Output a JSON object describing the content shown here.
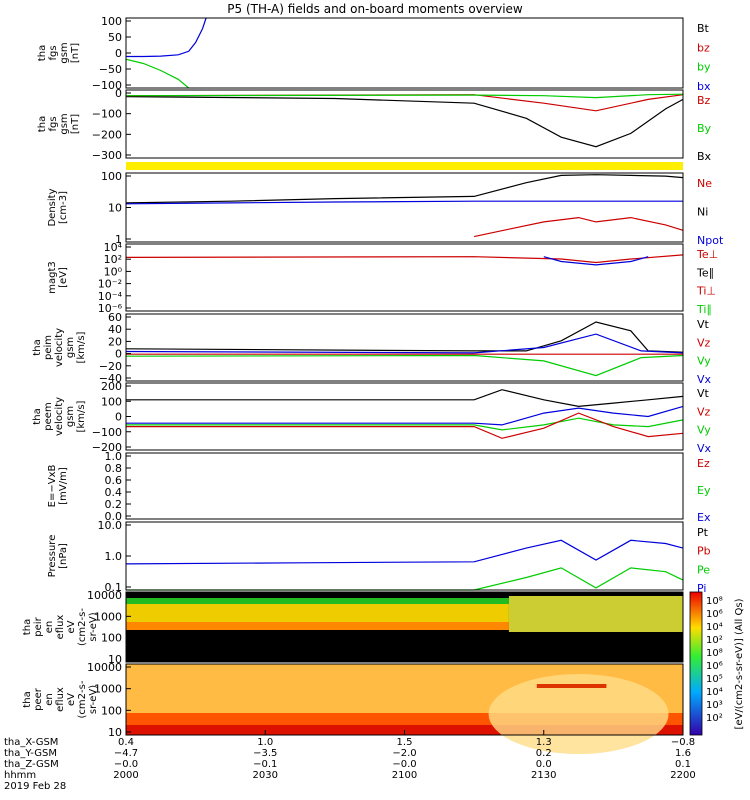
{
  "title": "P5 (TH-A) fields and on-board moments overview",
  "chart_data": [
    {
      "type": "line",
      "panel": "fgs_gsm",
      "ylabel": [
        "tha",
        "fgs",
        "gsm",
        "[nT]"
      ],
      "ylim": [
        -100,
        100
      ],
      "yticks": [
        "100",
        "50",
        "0",
        "−50",
        "−100"
      ],
      "legend": [
        {
          "name": "Bt",
          "color": "#000000"
        },
        {
          "name": "bz",
          "color": "#cc0000"
        },
        {
          "name": "by",
          "color": "#00cc00"
        },
        {
          "name": "bx",
          "color": "#0000dd"
        }
      ],
      "series": [
        {
          "name": "bx",
          "color": "#0000dd",
          "x": [
            2000,
            2005,
            2010,
            2015,
            2018,
            2020,
            2022,
            2023
          ],
          "y": [
            -10,
            -10,
            -9,
            -5,
            5,
            30,
            70,
            100
          ]
        },
        {
          "name": "by",
          "color": "#00cc00",
          "x": [
            2000,
            2005,
            2010,
            2015,
            2018
          ],
          "y": [
            -18,
            -30,
            -50,
            -75,
            -100
          ]
        }
      ]
    },
    {
      "type": "line",
      "panel": "fgs_gse",
      "ylabel": [
        "tha",
        "fgs",
        "gsm",
        "[nT]"
      ],
      "ylim": [
        -330,
        30
      ],
      "yticks": [
        "0",
        "−100",
        "−200",
        "−300"
      ],
      "legend": [
        {
          "name": "Bz",
          "color": "#cc0000"
        },
        {
          "name": "By",
          "color": "#00cc00"
        },
        {
          "name": "Bx",
          "color": "#000000"
        }
      ],
      "series": [
        {
          "name": "Bx",
          "color": "#000000",
          "x": [
            2000,
            2060,
            2100,
            2115,
            2125,
            2135,
            2145,
            2155,
            2160
          ],
          "y": [
            -5,
            -15,
            -40,
            -120,
            -220,
            -270,
            -200,
            -70,
            -20
          ]
        },
        {
          "name": "Bz",
          "color": "#cc0000",
          "x": [
            2000,
            2100,
            2120,
            2135,
            2150,
            2160
          ],
          "y": [
            0,
            5,
            -40,
            -80,
            -20,
            5
          ]
        },
        {
          "name": "By",
          "color": "#00cc00",
          "x": [
            2000,
            2100,
            2120,
            2135,
            2150,
            2160
          ],
          "y": [
            0,
            3,
            0,
            -10,
            5,
            8
          ]
        }
      ]
    },
    {
      "type": "line",
      "panel": "density",
      "ylabel": [
        "Density",
        "[cm-3]"
      ],
      "scale": "log",
      "ylim": [
        0.3,
        200
      ],
      "yticks": [
        "100",
        "10",
        "1"
      ],
      "legend": [
        {
          "name": "Ne",
          "color": "#cc0000"
        },
        {
          "name": "Ni",
          "color": "#000000"
        },
        {
          "name": "Npot",
          "color": "#0000dd"
        }
      ],
      "series": [
        {
          "name": "Ni",
          "color": "#000000",
          "x": [
            2000,
            2030,
            2060,
            2100,
            2115,
            2125,
            2135,
            2145,
            2155,
            2160
          ],
          "y": [
            12,
            14,
            18,
            22,
            80,
            160,
            170,
            160,
            150,
            130
          ]
        },
        {
          "name": "Npot",
          "color": "#0000dd",
          "x": [
            2000,
            2030,
            2060,
            2100,
            2110,
            2130,
            2150,
            2160
          ],
          "y": [
            11,
            12,
            13,
            14,
            14,
            14,
            14,
            14
          ]
        },
        {
          "name": "Ne",
          "color": "#cc0000",
          "x": [
            2100,
            2110,
            2120,
            2130,
            2135,
            2145,
            2155,
            2160
          ],
          "y": [
            0.5,
            1,
            2,
            3,
            2,
            3,
            1.5,
            0.9
          ]
        }
      ]
    },
    {
      "type": "line",
      "panel": "temperature",
      "ylabel": [
        "magt3",
        "[eV]"
      ],
      "scale": "log",
      "ylim": [
        1e-07,
        30000
      ],
      "yticks": [
        "10⁴",
        "10²",
        "10⁰",
        "10⁻²",
        "10⁻⁴",
        "10⁻⁶"
      ],
      "legend": [
        {
          "name": "Te⊥",
          "color": "#cc0000"
        },
        {
          "name": "Te∥",
          "color": "#000000"
        },
        {
          "name": "Ti⊥",
          "color": "#cc0000"
        },
        {
          "name": "Ti∥",
          "color": "#00cc00"
        }
      ],
      "series": [
        {
          "name": "Te⊥",
          "color": "#cc0000",
          "x": [
            2000,
            2100,
            2125,
            2135,
            2145,
            2160
          ],
          "y": [
            150,
            200,
            80,
            20,
            80,
            400
          ]
        },
        {
          "name": "Ti⊥",
          "color": "#0000dd",
          "x": [
            2120,
            2125,
            2135,
            2145,
            2150
          ],
          "y": [
            200,
            30,
            8,
            30,
            200
          ]
        }
      ]
    },
    {
      "type": "line",
      "panel": "velocity_gsm_peim",
      "ylabel": [
        "tha",
        "peim",
        "velocity",
        "gsm",
        "[km/s]"
      ],
      "ylim": [
        -40,
        60
      ],
      "yticks": [
        "60",
        "40",
        "20",
        "0",
        "−20",
        "−40"
      ],
      "legend": [
        {
          "name": "Vt",
          "color": "#000000"
        },
        {
          "name": "Vz",
          "color": "#cc0000"
        },
        {
          "name": "Vy",
          "color": "#00cc00"
        },
        {
          "name": "Vx",
          "color": "#0000dd"
        }
      ],
      "series": [
        {
          "name": "Vt",
          "color": "#000000",
          "x": [
            2000,
            2100,
            2115,
            2125,
            2135,
            2145,
            2150,
            2160
          ],
          "y": [
            8,
            5,
            5,
            20,
            48,
            35,
            5,
            3
          ]
        },
        {
          "name": "Vx",
          "color": "#0000dd",
          "x": [
            2000,
            2100,
            2120,
            2135,
            2148,
            2160
          ],
          "y": [
            4,
            2,
            10,
            30,
            5,
            2
          ]
        },
        {
          "name": "Vy",
          "color": "#00cc00",
          "x": [
            2000,
            2100,
            2120,
            2135,
            2148,
            2160
          ],
          "y": [
            -3,
            -2,
            -10,
            -32,
            -5,
            -2
          ]
        },
        {
          "name": "Vz",
          "color": "#cc0000",
          "x": [
            2000,
            2160
          ],
          "y": [
            0,
            0
          ]
        }
      ]
    },
    {
      "type": "line",
      "panel": "velocity_gsm_peem",
      "ylabel": [
        "tha",
        "peem",
        "velocity",
        "gsm",
        "[km/s]"
      ],
      "ylim": [
        -200,
        200
      ],
      "yticks": [
        "200",
        "100",
        "0",
        "−100",
        "−200"
      ],
      "legend": [
        {
          "name": "Vt",
          "color": "#000000"
        },
        {
          "name": "Vz",
          "color": "#cc0000"
        },
        {
          "name": "Vy",
          "color": "#00cc00"
        },
        {
          "name": "Vx",
          "color": "#0000dd"
        }
      ],
      "series": [
        {
          "name": "Vt",
          "color": "#000000",
          "x": [
            2000,
            2100,
            2108,
            2120,
            2130,
            2140,
            2150,
            2160
          ],
          "y": [
            100,
            100,
            160,
            100,
            60,
            80,
            100,
            120
          ]
        },
        {
          "name": "Vx",
          "color": "#0000dd",
          "x": [
            2000,
            2100,
            2108,
            2120,
            2130,
            2140,
            2150,
            2160
          ],
          "y": [
            -40,
            -40,
            -50,
            20,
            50,
            20,
            0,
            60
          ]
        },
        {
          "name": "Vy",
          "color": "#00cc00",
          "x": [
            2000,
            2100,
            2108,
            2120,
            2130,
            2140,
            2150,
            2160
          ],
          "y": [
            -50,
            -50,
            -80,
            -50,
            -10,
            -50,
            -60,
            -20
          ]
        },
        {
          "name": "Vz",
          "color": "#cc0000",
          "x": [
            2000,
            2100,
            2108,
            2120,
            2130,
            2140,
            2150,
            2160
          ],
          "y": [
            -60,
            -60,
            -130,
            -70,
            20,
            -60,
            -120,
            -100
          ]
        }
      ]
    },
    {
      "type": "line",
      "panel": "e_field",
      "ylabel": [
        "E=−VxB",
        "[mV/m]"
      ],
      "ylim": [
        0,
        1
      ],
      "yticks": [
        "1.0",
        "0.8",
        "0.6",
        "0.4",
        "0.2",
        "0.0"
      ],
      "legend": [
        {
          "name": "Ez",
          "color": "#cc0000"
        },
        {
          "name": "Ey",
          "color": "#00cc00"
        },
        {
          "name": "Ex",
          "color": "#0000dd"
        }
      ],
      "series": []
    },
    {
      "type": "line",
      "panel": "pressure",
      "ylabel": [
        "Pressure",
        "[nPa]"
      ],
      "scale": "log",
      "ylim": [
        0.05,
        20
      ],
      "yticks": [
        "10.0",
        "1.0",
        "0.1"
      ],
      "legend": [
        {
          "name": "Pt",
          "color": "#000000"
        },
        {
          "name": "Pb",
          "color": "#cc0000"
        },
        {
          "name": "Pe",
          "color": "#00cc00"
        },
        {
          "name": "Pi",
          "color": "#0000dd"
        }
      ],
      "series": [
        {
          "name": "Pi",
          "color": "#0000dd",
          "x": [
            2000,
            2050,
            2100,
            2115,
            2125,
            2135,
            2145,
            2155,
            2160
          ],
          "y": [
            0.5,
            0.55,
            0.6,
            2,
            4,
            0.7,
            4,
            3,
            2
          ]
        },
        {
          "name": "Pe",
          "color": "#00cc00",
          "x": [
            2000,
            2100,
            2115,
            2125,
            2135,
            2145,
            2155,
            2160
          ],
          "y": [
            0.05,
            0.05,
            0.15,
            0.35,
            0.06,
            0.35,
            0.25,
            0.12
          ]
        }
      ]
    },
    {
      "type": "heatmap",
      "panel": "peir_en_eflux",
      "ylabel": [
        "tha",
        "peir",
        "en",
        "eflux",
        "eV",
        "(cm2-s-",
        "sr-eV)"
      ],
      "scale": "log",
      "yticks": [
        "10000",
        "1000",
        "100",
        "10"
      ]
    },
    {
      "type": "heatmap",
      "panel": "peer_en_eflux",
      "ylabel": [
        "tha",
        "peer",
        "en",
        "eflux",
        "eV",
        "(cm2-s-",
        "sr-eV)"
      ],
      "scale": "log",
      "yticks": [
        "10000",
        "1000",
        "100",
        "10"
      ]
    }
  ],
  "colorbar": {
    "label": "[eV/(cm2-s-sr-eV)] (All Qs)",
    "ticks": [
      "10⁸",
      "10⁶",
      "10⁴",
      "10²",
      "10⁸",
      "10⁶",
      "10⁵",
      "10⁴",
      "10³",
      "10²"
    ]
  },
  "xaxis": {
    "rows": [
      {
        "label": "tha_X-GSM",
        "values": [
          "0.4",
          "1.0",
          "1.5",
          "1.3",
          "−0.8"
        ]
      },
      {
        "label": "tha_Y-GSM",
        "values": [
          "−4.7",
          "−3.5",
          "−2.0",
          "0.2",
          "1.6"
        ]
      },
      {
        "label": "tha_Z-GSM",
        "values": [
          "−0.0",
          "−0.1",
          "−0.0",
          "0.0",
          "0.1"
        ]
      },
      {
        "label": "hhmm",
        "values": [
          "2000",
          "2030",
          "2100",
          "2130",
          "2200"
        ]
      }
    ],
    "date": "2019 Feb 28"
  }
}
